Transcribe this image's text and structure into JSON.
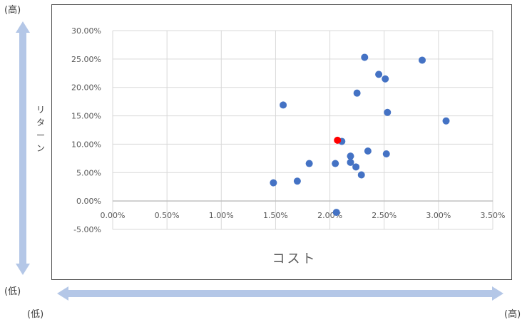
{
  "labels": {
    "high_top": "(高)",
    "low_left": "(低)",
    "low_bottom": "(低)",
    "high_right": "(高)",
    "y_title_chars": [
      "リ",
      "タ",
      "ー",
      "ン"
    ]
  },
  "colors": {
    "arrow": "#b4c7e7",
    "point": "#4472c4",
    "highlight": "#ff0000",
    "grid": "#d9d9d9",
    "text": "#595959"
  },
  "chart_data": {
    "type": "scatter",
    "title": "",
    "xlabel": "コスト",
    "ylabel": "リターン",
    "xlim": [
      0,
      3.5
    ],
    "ylim": [
      -5,
      30
    ],
    "x_ticks": [
      "0.00%",
      "0.50%",
      "1.00%",
      "1.50%",
      "2.00%",
      "2.50%",
      "3.00%",
      "3.50%"
    ],
    "y_ticks": [
      "30.00%",
      "25.00%",
      "20.00%",
      "15.00%",
      "10.00%",
      "5.00%",
      "0.00%",
      "-5.00%"
    ],
    "grid": true,
    "series": [
      {
        "points": [
          {
            "x": 1.48,
            "y": 3.2
          },
          {
            "x": 1.57,
            "y": 16.9
          },
          {
            "x": 1.7,
            "y": 3.5
          },
          {
            "x": 1.81,
            "y": 6.6
          },
          {
            "x": 2.05,
            "y": 6.6
          },
          {
            "x": 2.06,
            "y": -2.0
          },
          {
            "x": 2.11,
            "y": 10.5
          },
          {
            "x": 2.19,
            "y": 7.9
          },
          {
            "x": 2.19,
            "y": 6.8
          },
          {
            "x": 2.24,
            "y": 6.0
          },
          {
            "x": 2.25,
            "y": 19.0
          },
          {
            "x": 2.29,
            "y": 4.6
          },
          {
            "x": 2.32,
            "y": 25.3
          },
          {
            "x": 2.35,
            "y": 8.8
          },
          {
            "x": 2.45,
            "y": 22.3
          },
          {
            "x": 2.51,
            "y": 21.5
          },
          {
            "x": 2.52,
            "y": 8.3
          },
          {
            "x": 2.53,
            "y": 15.6
          },
          {
            "x": 2.85,
            "y": 24.8
          },
          {
            "x": 3.07,
            "y": 14.1
          }
        ]
      },
      {
        "highlight": true,
        "points": [
          {
            "x": 2.07,
            "y": 10.7
          }
        ]
      }
    ]
  }
}
